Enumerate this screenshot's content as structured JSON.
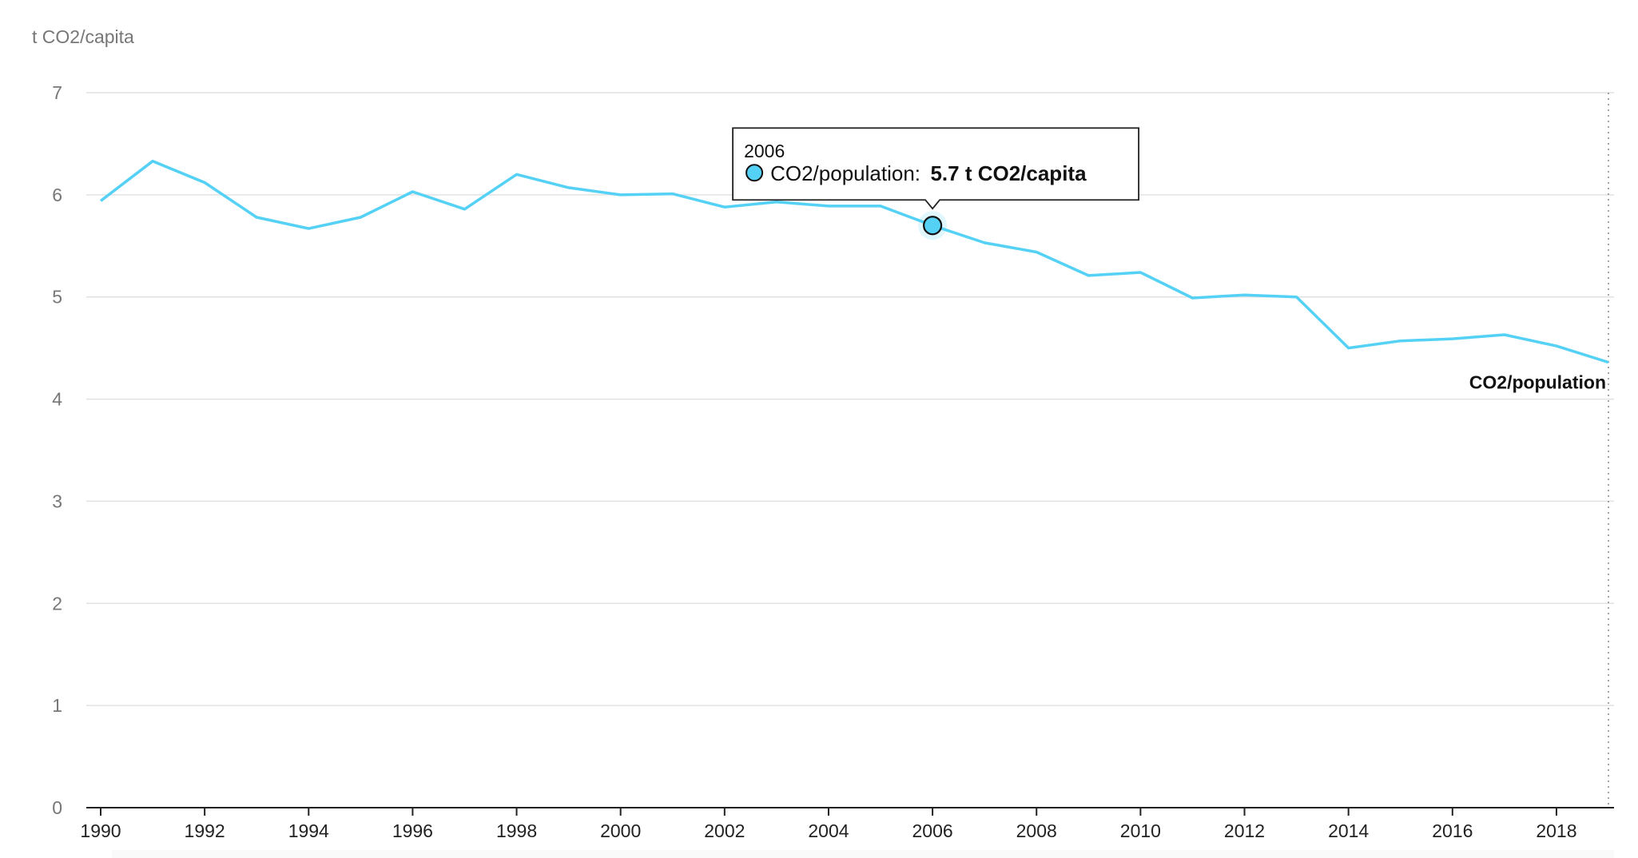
{
  "chart_data": {
    "type": "line",
    "ylabel": "t CO2/capita",
    "xlabel": "",
    "ylim": [
      0,
      7
    ],
    "xlim": [
      1990,
      2019
    ],
    "y_ticks": [
      "0",
      "1",
      "2",
      "3",
      "4",
      "5",
      "6",
      "7"
    ],
    "x_ticks": [
      "1990",
      "1992",
      "1994",
      "1996",
      "1998",
      "2000",
      "2002",
      "2004",
      "2006",
      "2008",
      "2010",
      "2012",
      "2014",
      "2016",
      "2018"
    ],
    "grid": true,
    "x": [
      1990,
      1991,
      1992,
      1993,
      1994,
      1995,
      1996,
      1997,
      1998,
      1999,
      2000,
      2001,
      2002,
      2003,
      2004,
      2005,
      2006,
      2007,
      2008,
      2009,
      2010,
      2011,
      2012,
      2013,
      2014,
      2015,
      2016,
      2017,
      2018,
      2019
    ],
    "series": [
      {
        "name": "CO2/population",
        "color": "#55d1f5",
        "values": [
          5.94,
          6.33,
          6.12,
          5.78,
          5.67,
          5.78,
          6.03,
          5.86,
          6.2,
          6.07,
          6.0,
          6.01,
          5.88,
          5.93,
          5.89,
          5.89,
          5.7,
          5.53,
          5.44,
          5.21,
          5.24,
          4.99,
          5.02,
          5.0,
          4.5,
          4.57,
          4.59,
          4.63,
          4.52,
          4.36
        ]
      }
    ],
    "end_label": "CO2/population",
    "tooltip": {
      "year": "2006",
      "series_label": "CO2/population:",
      "value_label": "5.7 t CO2/capita",
      "x": 2006,
      "y": 5.7
    }
  }
}
